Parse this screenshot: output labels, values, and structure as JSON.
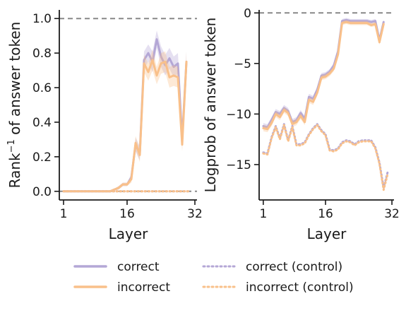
{
  "colors": {
    "correct": "#b4a7d6",
    "incorrect": "#f9c08a",
    "reference": "#888888",
    "axis": "#1a1a1a"
  },
  "legend": [
    {
      "label": "correct",
      "series": "correct",
      "style": "solid"
    },
    {
      "label": "incorrect",
      "series": "incorrect",
      "style": "solid"
    },
    {
      "label": "correct (control)",
      "series": "correct",
      "style": "dotted"
    },
    {
      "label": "incorrect (control)",
      "series": "incorrect",
      "style": "dotted"
    }
  ],
  "chart_data": [
    {
      "type": "line",
      "xlabel": "Layer",
      "ylabel_main": "Rank",
      "ylabel_sup": "−1",
      "ylabel_rest": " of answer token",
      "xlim": [
        0,
        32.5
      ],
      "ylim": [
        -0.05,
        1.05
      ],
      "xticks": [
        1,
        16,
        32
      ],
      "yticks": [
        0.0,
        0.2,
        0.4,
        0.6,
        0.8,
        1.0
      ],
      "ytick_labels": [
        "0.0",
        "0.2",
        "0.4",
        "0.6",
        "0.8",
        "1.0"
      ],
      "reference_lines": [
        1.0,
        0.0
      ],
      "x": [
        1,
        2,
        3,
        4,
        5,
        6,
        7,
        8,
        9,
        10,
        11,
        12,
        13,
        14,
        15,
        16,
        17,
        18,
        19,
        20,
        21,
        22,
        23,
        24,
        25,
        26,
        27,
        28,
        29,
        30,
        31
      ],
      "series": [
        {
          "name": "correct",
          "style": "solid",
          "values": [
            0.0,
            0.0,
            0.0,
            0.0,
            0.0,
            0.0,
            0.0,
            0.0,
            0.0,
            0.0,
            0.0,
            0.0,
            0.01,
            0.02,
            0.04,
            0.04,
            0.08,
            0.27,
            0.22,
            0.76,
            0.8,
            0.75,
            0.88,
            0.78,
            0.73,
            0.77,
            0.72,
            0.74,
            0.3,
            0.75,
            null
          ],
          "band": [
            0.0,
            0.0,
            0.0,
            0.0,
            0.0,
            0.0,
            0.0,
            0.0,
            0.0,
            0.0,
            0.0,
            0.0,
            0.005,
            0.01,
            0.01,
            0.01,
            0.02,
            0.04,
            0.04,
            0.05,
            0.05,
            0.06,
            0.05,
            0.06,
            0.06,
            0.06,
            0.06,
            0.06,
            0.04,
            0.06,
            null
          ]
        },
        {
          "name": "incorrect",
          "style": "solid",
          "values": [
            0.0,
            0.0,
            0.0,
            0.0,
            0.0,
            0.0,
            0.0,
            0.0,
            0.0,
            0.0,
            0.0,
            0.0,
            0.01,
            0.02,
            0.04,
            0.04,
            0.07,
            0.28,
            0.21,
            0.74,
            0.69,
            0.76,
            0.67,
            0.74,
            0.75,
            0.66,
            0.67,
            0.66,
            0.27,
            0.75,
            null
          ],
          "band": [
            0.0,
            0.0,
            0.0,
            0.0,
            0.0,
            0.0,
            0.0,
            0.0,
            0.0,
            0.0,
            0.0,
            0.0,
            0.005,
            0.01,
            0.01,
            0.01,
            0.02,
            0.04,
            0.04,
            0.05,
            0.05,
            0.06,
            0.05,
            0.06,
            0.06,
            0.06,
            0.06,
            0.06,
            0.04,
            0.06,
            null
          ]
        },
        {
          "name": "correct (control)",
          "style": "dotted",
          "values": [
            0,
            0,
            0,
            0,
            0,
            0,
            0,
            0,
            0,
            0,
            0,
            0,
            0,
            0,
            0,
            0,
            0,
            0,
            0,
            0,
            0,
            0,
            0,
            0,
            0,
            0,
            0,
            0,
            0,
            0,
            0
          ]
        },
        {
          "name": "incorrect (control)",
          "style": "dotted",
          "values": [
            0,
            0,
            0,
            0,
            0,
            0,
            0,
            0,
            0,
            0,
            0,
            0,
            0,
            0,
            0,
            0,
            0,
            0,
            0,
            0,
            0,
            0,
            0,
            0,
            0,
            0,
            0,
            0,
            0,
            0,
            0
          ]
        }
      ]
    },
    {
      "type": "line",
      "xlabel": "Layer",
      "ylabel": "Logprob of answer token",
      "xlim": [
        0,
        32.5
      ],
      "ylim": [
        -18.5,
        0.3
      ],
      "xticks": [
        1,
        16,
        32
      ],
      "yticks": [
        0,
        -5,
        -10,
        -15
      ],
      "ytick_labels": [
        "0",
        "−5",
        "−10",
        "−15"
      ],
      "reference_lines": [
        0
      ],
      "x": [
        1,
        2,
        3,
        4,
        5,
        6,
        7,
        8,
        9,
        10,
        11,
        12,
        13,
        14,
        15,
        16,
        17,
        18,
        19,
        20,
        21,
        22,
        23,
        24,
        25,
        26,
        27,
        28,
        29,
        30,
        31
      ],
      "series": [
        {
          "name": "correct",
          "style": "solid",
          "values": [
            -11.2,
            -11.3,
            -10.6,
            -9.8,
            -10.0,
            -9.4,
            -9.7,
            -10.8,
            -10.6,
            -9.9,
            -10.5,
            -8.3,
            -8.5,
            -7.6,
            -6.2,
            -6.1,
            -5.8,
            -5.2,
            -3.8,
            -0.8,
            -0.7,
            -0.8,
            -0.8,
            -0.8,
            -0.8,
            -0.8,
            -0.9,
            -0.8,
            -2.7,
            -0.9,
            null
          ],
          "band": [
            0.3,
            0.3,
            0.3,
            0.3,
            0.3,
            0.3,
            0.3,
            0.3,
            0.3,
            0.3,
            0.3,
            0.3,
            0.3,
            0.3,
            0.25,
            0.25,
            0.25,
            0.25,
            0.25,
            0.2,
            0.2,
            0.2,
            0.2,
            0.2,
            0.2,
            0.2,
            0.2,
            0.2,
            0.25,
            0.2,
            null
          ]
        },
        {
          "name": "incorrect",
          "style": "solid",
          "values": [
            -11.4,
            -11.5,
            -10.9,
            -10.0,
            -10.3,
            -9.6,
            -9.9,
            -11.0,
            -10.8,
            -10.2,
            -10.8,
            -8.6,
            -8.8,
            -7.9,
            -6.4,
            -6.3,
            -6.0,
            -5.5,
            -4.1,
            -1.0,
            -0.9,
            -1.0,
            -1.0,
            -1.0,
            -1.0,
            -1.0,
            -1.2,
            -1.1,
            -2.9,
            -1.1,
            null
          ],
          "band": [
            0.3,
            0.3,
            0.3,
            0.3,
            0.3,
            0.3,
            0.3,
            0.3,
            0.3,
            0.3,
            0.3,
            0.3,
            0.3,
            0.3,
            0.25,
            0.25,
            0.25,
            0.25,
            0.25,
            0.2,
            0.2,
            0.2,
            0.2,
            0.2,
            0.2,
            0.2,
            0.2,
            0.2,
            0.25,
            0.2,
            null
          ]
        },
        {
          "name": "correct (control)",
          "style": "dotted",
          "values": [
            -13.8,
            -13.9,
            -12.3,
            -11.2,
            -12.4,
            -11.0,
            -12.6,
            -11.2,
            -13.0,
            -13.0,
            -12.8,
            -12.0,
            -11.4,
            -11.0,
            -11.6,
            -12.0,
            -13.5,
            -13.6,
            -13.4,
            -12.8,
            -12.6,
            -12.7,
            -13.0,
            -12.7,
            -12.6,
            -12.6,
            -12.6,
            -13.3,
            -14.8,
            -17.3,
            -15.7
          ]
        },
        {
          "name": "incorrect (control)",
          "style": "dotted",
          "values": [
            -13.9,
            -14.0,
            -12.4,
            -11.3,
            -12.5,
            -11.1,
            -12.7,
            -11.3,
            -13.1,
            -13.1,
            -12.9,
            -12.1,
            -11.5,
            -11.1,
            -11.7,
            -12.1,
            -13.6,
            -13.7,
            -13.5,
            -12.9,
            -12.7,
            -12.8,
            -13.1,
            -12.8,
            -12.7,
            -12.7,
            -12.7,
            -13.4,
            -14.9,
            -17.5,
            -15.9
          ]
        }
      ]
    }
  ]
}
